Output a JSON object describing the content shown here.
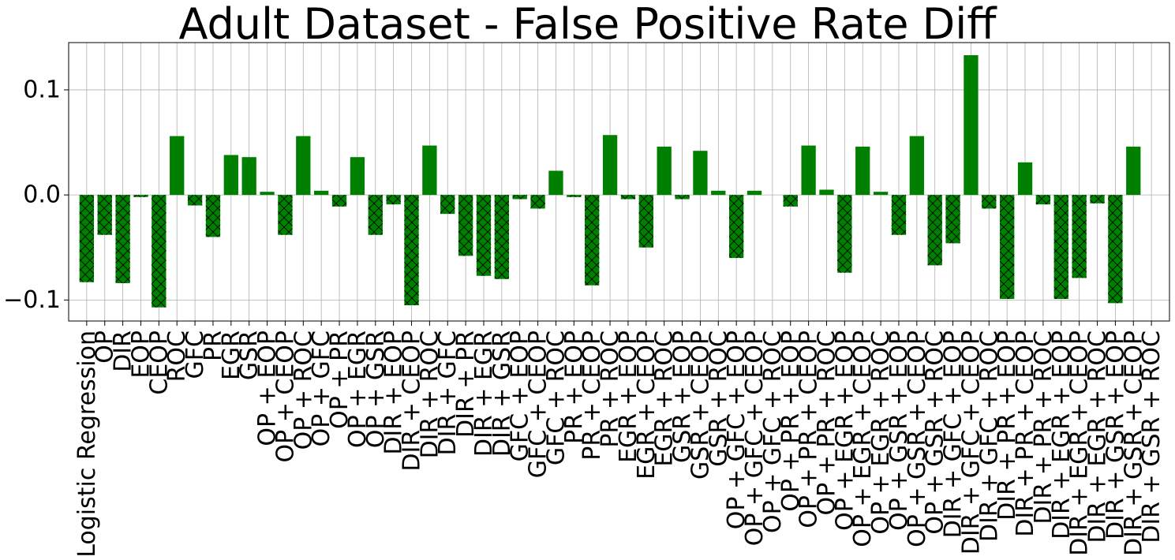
{
  "chart_data": {
    "type": "bar",
    "title": "Adult Dataset - False Positive Rate Diff",
    "xlabel": "",
    "ylabel": "",
    "ylim": [
      -0.12,
      0.145
    ],
    "yticks": [
      -0.1,
      0.0,
      0.1
    ],
    "ytick_labels": [
      "−0.1",
      "0.0",
      "0.1"
    ],
    "grid": true,
    "bar_color": "#008000",
    "hatch_negative": "x",
    "categories": [
      "Logistic Regression",
      "OP",
      "DIR",
      "EOP",
      "CEOP",
      "ROC",
      "GFC",
      "PR",
      "EGR",
      "GSR",
      "OP + EOP",
      "OP + CEOP",
      "OP + ROC",
      "OP + GFC",
      "OP + PR",
      "OP + EGR",
      "OP + GSR",
      "DIR + EOP",
      "DIR + CEOP",
      "DIR + ROC",
      "DIR + GFC",
      "DIR + PR",
      "DIR + EGR",
      "DIR + GSR",
      "GFC + EOP",
      "GFC + CEOP",
      "GFC + ROC",
      "PR + EOP",
      "PR + CEOP",
      "PR + ROC",
      "EGR + EOP",
      "EGR + CEOP",
      "EGR + ROC",
      "GSR + EOP",
      "GSR + CEOP",
      "GSR + ROC",
      "OP + GFC + EOP",
      "OP + GFC + CEOP",
      "OP + GFC + ROC",
      "OP + PR + EOP",
      "OP + PR + CEOP",
      "OP + PR + ROC",
      "OP + EGR + EOP",
      "OP + EGR + CEOP",
      "OP + EGR + ROC",
      "OP + GSR + EOP",
      "OP + GSR + CEOP",
      "OP + GSR + ROC",
      "DIR + GFC + EOP",
      "DIR + GFC + CEOP",
      "DIR + GFC + ROC",
      "DIR + PR + EOP",
      "DIR + PR + CEOP",
      "DIR + PR + ROC",
      "DIR + EGR + EOP",
      "DIR + EGR + CEOP",
      "DIR + EGR + ROC",
      "DIR + GSR + EOP",
      "DIR + GSR + CEOP",
      "DIR + GSR + ROC"
    ],
    "values": [
      -0.083,
      -0.038,
      -0.084,
      -0.002,
      -0.107,
      0.056,
      -0.01,
      -0.04,
      0.038,
      0.036,
      0.003,
      -0.038,
      0.056,
      0.004,
      -0.011,
      0.036,
      -0.038,
      -0.009,
      -0.105,
      0.047,
      -0.018,
      -0.058,
      -0.077,
      -0.08,
      -0.004,
      -0.013,
      0.023,
      -0.002,
      -0.086,
      0.057,
      -0.004,
      -0.05,
      0.046,
      -0.004,
      0.042,
      0.004,
      -0.06,
      0.004,
      0.0,
      -0.011,
      0.047,
      0.005,
      -0.074,
      0.046,
      0.003,
      -0.038,
      0.056,
      -0.067,
      -0.046,
      0.133,
      -0.013,
      -0.099,
      0.031,
      -0.009,
      -0.099,
      -0.079,
      -0.008,
      -0.103,
      0.046,
      0.0
    ]
  }
}
